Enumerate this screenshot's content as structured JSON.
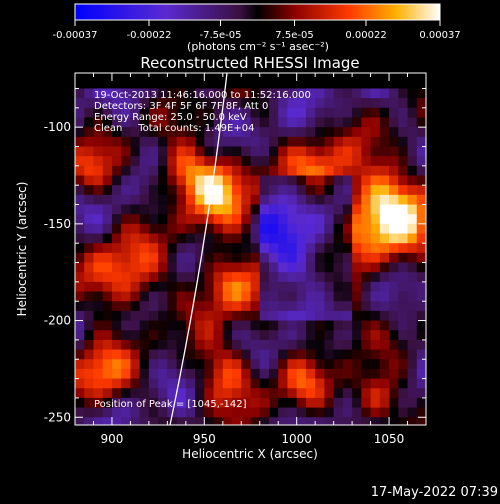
{
  "chart_data": {
    "type": "heatmap",
    "title": "Reconstructed RHESSI Image",
    "xlabel": "Heliocentric X (arcsec)",
    "ylabel": "Heliocentric Y (arcsec)",
    "x_ticks": [
      900,
      950,
      1000,
      1050
    ],
    "y_ticks": [
      -100,
      -150,
      -200,
      -250
    ],
    "xlim": [
      880,
      1070
    ],
    "ylim": [
      -254,
      -72
    ],
    "colorbar": {
      "colormap": "blue-purple-red-yellow-white",
      "range": [
        -0.00037,
        0.00037
      ],
      "tick_labels": [
        "-0.00037",
        "-0.00022",
        "-7.5e-05",
        "7.5e-05",
        "0.00022",
        "0.00037"
      ],
      "label": "(photons cm⁻² s⁻¹ asec⁻²)"
    },
    "annotations": [
      "19-Oct-2013 11:46:16.000 to 11:52:16.000",
      "Detectors: 3F 4F 5F 6F 7F 8F, Att 0",
      "Energy Range: 25.0 - 50.0 keV",
      "Clean     Total counts: 1.49E+04"
    ],
    "peak_label": "Position of Peak = [1045,-142]",
    "peak_position": [
      1045,
      -142
    ],
    "grid": false
  },
  "footer": {
    "timestamp": "17-May-2022 07:39"
  }
}
